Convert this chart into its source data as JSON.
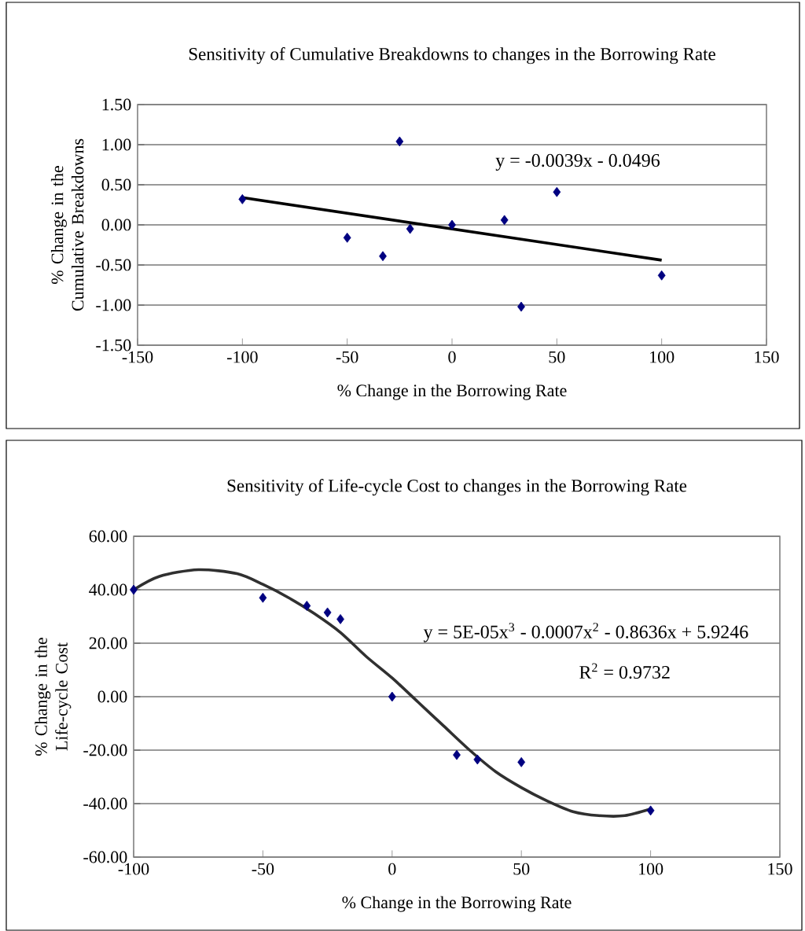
{
  "chart_data": [
    {
      "type": "scatter",
      "title": "Sensitivity of Cumulative Breakdowns to changes in the Borrowing Rate",
      "xlabel": "% Change in the Borrowing Rate",
      "ylabel": "% Change in the Cumulative Breakdowns",
      "xlim": [
        -150,
        150
      ],
      "xticks": [
        -150,
        -100,
        -50,
        0,
        50,
        100,
        150
      ],
      "ylim": [
        -1.5,
        1.5
      ],
      "yticks": [
        {
          "value": -1.5,
          "label": "-1.50"
        },
        {
          "value": -1,
          "label": "-1.00"
        },
        {
          "value": -0.5,
          "label": "-0.50"
        },
        {
          "value": 0,
          "label": "0.00"
        },
        {
          "value": 0.5,
          "label": "0.50"
        },
        {
          "value": 1,
          "label": "1.00"
        },
        {
          "value": 1.5,
          "label": "1.50"
        }
      ],
      "grid": "y",
      "series": [
        {
          "color": "#000080",
          "marker": "diamond",
          "x": [
            -100,
            -50,
            -33,
            -25,
            -20,
            0,
            25,
            33,
            50,
            100
          ],
          "values": [
            0.32,
            -0.16,
            -0.39,
            1.04,
            -0.05,
            0.0,
            0.06,
            -1.02,
            0.41,
            -0.63
          ]
        },
        {
          "type": "line",
          "color": "#000000",
          "line_style": "solid",
          "x": [
            -100,
            100
          ],
          "values": [
            0.34,
            -0.44
          ]
        }
      ],
      "annotations": [
        "y = -0.0039x - 0.0496"
      ]
    },
    {
      "type": "scatter",
      "title": "Sensitivity of Life-cycle Cost to changes in the Borrowing Rate",
      "xlabel": "% Change in the Borrowing Rate",
      "ylabel": "% Change in the Life-cycle Cost",
      "xlim": [
        -100,
        150
      ],
      "xticks": [
        -100,
        -50,
        0,
        50,
        100,
        150
      ],
      "ylim": [
        -60,
        60
      ],
      "yticks": [
        {
          "value": -60,
          "label": "-60.00"
        },
        {
          "value": -40,
          "label": "-40.00"
        },
        {
          "value": -20,
          "label": "-20.00"
        },
        {
          "value": 0,
          "label": "0.00"
        },
        {
          "value": 20,
          "label": "20.00"
        },
        {
          "value": 40,
          "label": "40.00"
        },
        {
          "value": 60,
          "label": "60.00"
        }
      ],
      "grid": "y",
      "series": [
        {
          "color": "#000080",
          "marker": "diamond",
          "x": [
            -100,
            -50,
            -33,
            -25,
            -20,
            0,
            25,
            33,
            50,
            100
          ],
          "values": [
            40,
            37,
            34,
            31.5,
            29,
            0,
            -21.8,
            -23.5,
            -24.5,
            -42.6
          ]
        },
        {
          "type": "line",
          "color": "#303030",
          "line_style": "solid",
          "x": [
            -100,
            -90,
            -75,
            -60,
            -50,
            -40,
            -30,
            -20,
            -10,
            0,
            10,
            20,
            30,
            40,
            50,
            60,
            70,
            80,
            90,
            100
          ],
          "values": [
            40,
            45,
            47.5,
            46,
            42,
            37,
            31,
            24,
            15,
            7,
            -2,
            -11,
            -20,
            -28,
            -34,
            -39,
            -43,
            -44.5,
            -44.5,
            -42
          ]
        }
      ],
      "annotations": [
        "y = 5E-05x$^{3}$ - 0.0007x$^{2}$ - 0.8636x + 5.9246",
        "R$^{2}$ = 0.9732"
      ]
    }
  ]
}
